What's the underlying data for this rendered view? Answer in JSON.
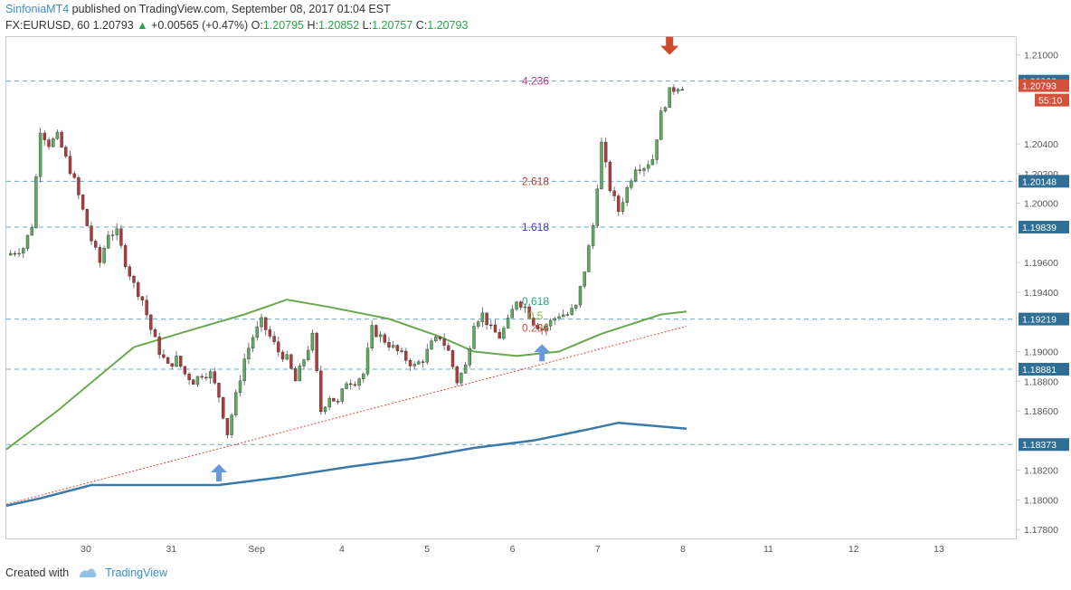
{
  "header": {
    "author": "SinfoniaMT4",
    "published": " published on TradingView.com, September 08, 2017 01:04 EST",
    "symbol": "FX:EURUSD, 60",
    "last": "1.20793",
    "change": "+0.00565 (+0.47%)",
    "o_label": "O:",
    "o": "1.20795",
    "h_label": "H:",
    "h": "1.20852",
    "l_label": "L:",
    "l": "1.20757",
    "c_label": "C:",
    "c": "1.20793"
  },
  "footer": {
    "created_with": "Created with",
    "brand": "TradingView"
  },
  "colors": {
    "up": "#3d9970",
    "down": "#c0392b",
    "candle_up": "#5cae5e",
    "candle_down": "#b33a3a",
    "sma_green": "#6aa84f",
    "sma_blue": "#3a7aa8",
    "hline": "#6fa8c8",
    "trend": "#e0453a",
    "arrow_up": "#6699dd",
    "arrow_down": "#d04a2e",
    "price_box": "#d2513a",
    "level_box": "#2f6f96"
  },
  "chart_data": {
    "type": "candlestick",
    "ylim": [
      1.1774,
      1.2112
    ],
    "y_ticks": [
      "1.21000",
      "1.20400",
      "1.20200",
      "1.20000",
      "1.19600",
      "1.19400",
      "1.19000",
      "1.18800",
      "1.18600",
      "1.18200",
      "1.18000",
      "1.17800"
    ],
    "x_labels": [
      "30",
      "31",
      "Sep",
      "4",
      "5",
      "6",
      "7",
      "8",
      "11",
      "12",
      "13"
    ],
    "horizontal_levels": [
      "1.20823",
      "1.20148",
      "1.19839",
      "1.19219",
      "1.18881",
      "1.18373"
    ],
    "current_price": "1.20793",
    "countdown": "55:10",
    "fib_labels": [
      {
        "text": "4.236",
        "price": 1.20823,
        "color": "#b03a8a"
      },
      {
        "text": "2.618",
        "price": 1.20148,
        "color": "#c0392b"
      },
      {
        "text": "1.618",
        "price": 1.19839,
        "color": "#3b3bb0"
      },
      {
        "text": "0.618",
        "price": 1.1934,
        "color": "#2aa87a"
      },
      {
        "text": "0.5",
        "price": 1.1924,
        "color": "#8ab04a"
      },
      {
        "text": "0.236",
        "price": 1.1916,
        "color": "#d2513a"
      }
    ],
    "candle_path": [
      [
        0,
        1.1965
      ],
      [
        2,
        1.197
      ],
      [
        3,
        1.1985
      ],
      [
        4,
        1.205
      ],
      [
        5,
        1.204
      ],
      [
        6,
        1.2045
      ],
      [
        7,
        1.203
      ],
      [
        8,
        1.2015
      ],
      [
        9,
        1.1995
      ],
      [
        10,
        1.1975
      ],
      [
        11,
        1.196
      ],
      [
        12,
        1.198
      ],
      [
        13,
        1.198
      ],
      [
        14,
        1.196
      ],
      [
        15,
        1.1945
      ],
      [
        16,
        1.1935
      ],
      [
        17,
        1.1915
      ],
      [
        18,
        1.19
      ],
      [
        19,
        1.189
      ],
      [
        20,
        1.1895
      ],
      [
        21,
        1.1885
      ],
      [
        22,
        1.188
      ],
      [
        23,
        1.1885
      ],
      [
        24,
        1.1885
      ],
      [
        25,
        1.187
      ],
      [
        26,
        1.1845
      ],
      [
        27,
        1.187
      ],
      [
        28,
        1.1895
      ],
      [
        29,
        1.191
      ],
      [
        30,
        1.192
      ],
      [
        31,
        1.191
      ],
      [
        32,
        1.19
      ],
      [
        33,
        1.1895
      ],
      [
        34,
        1.188
      ],
      [
        35,
        1.1895
      ],
      [
        36,
        1.191
      ],
      [
        37,
        1.186
      ],
      [
        38,
        1.187
      ],
      [
        39,
        1.1865
      ],
      [
        40,
        1.188
      ],
      [
        41,
        1.188
      ],
      [
        42,
        1.1885
      ],
      [
        43,
        1.1915
      ],
      [
        44,
        1.191
      ],
      [
        45,
        1.1905
      ],
      [
        46,
        1.19
      ],
      [
        47,
        1.1895
      ],
      [
        48,
        1.189
      ],
      [
        49,
        1.1895
      ],
      [
        50,
        1.1905
      ],
      [
        51,
        1.191
      ],
      [
        52,
        1.19
      ],
      [
        53,
        1.188
      ],
      [
        54,
        1.189
      ],
      [
        55,
        1.192
      ],
      [
        56,
        1.1925
      ],
      [
        57,
        1.1915
      ],
      [
        58,
        1.191
      ],
      [
        59,
        1.192
      ],
      [
        60,
        1.1935
      ],
      [
        61,
        1.193
      ],
      [
        62,
        1.192
      ],
      [
        63,
        1.1915
      ],
      [
        64,
        1.192
      ],
      [
        65,
        1.1925
      ],
      [
        66,
        1.1925
      ],
      [
        67,
        1.193
      ],
      [
        68,
        1.1955
      ],
      [
        69,
        1.1985
      ],
      [
        70,
        1.204
      ],
      [
        71,
        1.201
      ],
      [
        72,
        1.1995
      ],
      [
        73,
        1.201
      ],
      [
        74,
        1.2025
      ],
      [
        75,
        1.2025
      ],
      [
        76,
        1.203
      ],
      [
        77,
        1.206
      ],
      [
        78,
        1.2075
      ],
      [
        79,
        1.2079
      ]
    ],
    "sma_green": [
      [
        0,
        1.1834
      ],
      [
        6,
        1.186
      ],
      [
        15,
        1.1903
      ],
      [
        22,
        1.1915
      ],
      [
        28,
        1.1925
      ],
      [
        33,
        1.1935
      ],
      [
        38,
        1.193
      ],
      [
        45,
        1.1922
      ],
      [
        51,
        1.191
      ],
      [
        55,
        1.19
      ],
      [
        60,
        1.1897
      ],
      [
        65,
        1.19
      ],
      [
        70,
        1.1912
      ],
      [
        77,
        1.1925
      ],
      [
        80,
        1.1927
      ]
    ],
    "sma_blue": [
      [
        0,
        1.1796
      ],
      [
        4,
        1.1801
      ],
      [
        10,
        1.181
      ],
      [
        18,
        1.181
      ],
      [
        25,
        1.181
      ],
      [
        32,
        1.1815
      ],
      [
        40,
        1.1822
      ],
      [
        48,
        1.1828
      ],
      [
        55,
        1.1835
      ],
      [
        62,
        1.184
      ],
      [
        68,
        1.1847
      ],
      [
        72,
        1.1852
      ],
      [
        80,
        1.1848
      ]
    ],
    "trendline": [
      [
        0,
        1.1797
      ],
      [
        80,
        1.1917
      ]
    ],
    "annotations": [
      {
        "type": "arrow-up",
        "bar": 25,
        "price": 1.1824
      },
      {
        "type": "arrow-up",
        "bar": 63,
        "price": 1.1905
      },
      {
        "type": "arrow-down",
        "bar": 78,
        "price": 1.21
      }
    ]
  }
}
